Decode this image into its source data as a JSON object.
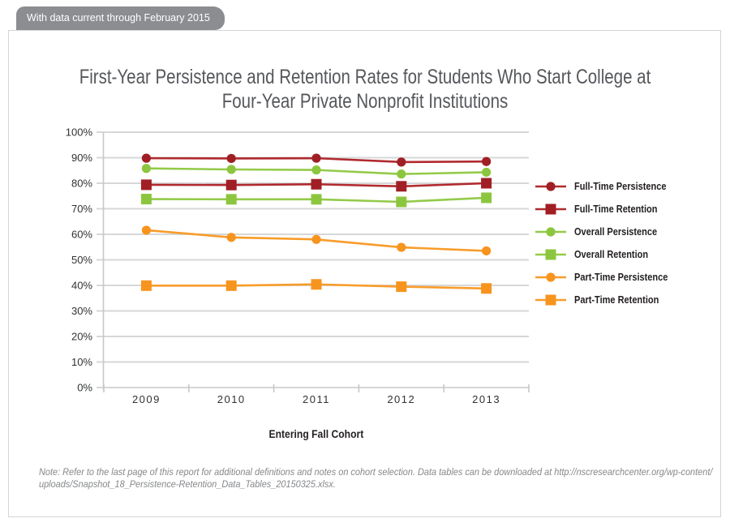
{
  "badge": {
    "text": "With data current through February 2015"
  },
  "title": {
    "line1": "First-Year Persistence and Retention Rates for Students Who Start College at",
    "line2": "Four-Year Private Nonprofit Institutions"
  },
  "chart_data": {
    "type": "line",
    "title": "First-Year Persistence and Retention Rates for Students Who Start College at Four-Year Private Nonprofit Institutions",
    "xlabel": "Entering Fall Cohort",
    "ylabel": "",
    "categories": [
      "2009",
      "2010",
      "2011",
      "2012",
      "2013"
    ],
    "ylim": [
      0,
      100
    ],
    "ytick_step": 10,
    "y_ticks": [
      "100%",
      "90%",
      "80%",
      "70%",
      "60%",
      "50%",
      "40%",
      "30%",
      "20%",
      "10%",
      "0%"
    ],
    "grid": true,
    "legend_position": "right",
    "series": [
      {
        "name": "Full-Time Persistence",
        "marker": "circle",
        "color": "#a01f25",
        "line_color": "#b02a2e",
        "values": [
          89.8,
          89.7,
          89.8,
          88.3,
          88.5
        ]
      },
      {
        "name": "Full-Time Retention",
        "marker": "square",
        "color": "#a01f25",
        "line_color": "#b02a2e",
        "values": [
          79.4,
          79.3,
          79.6,
          78.8,
          80.0
        ]
      },
      {
        "name": "Overall Persistence",
        "marker": "circle",
        "color": "#8cc63e",
        "line_color": "#93ca49",
        "values": [
          85.8,
          85.4,
          85.2,
          83.6,
          84.3
        ]
      },
      {
        "name": "Overall Retention",
        "marker": "square",
        "color": "#8cc63e",
        "line_color": "#93ca49",
        "values": [
          73.8,
          73.7,
          73.7,
          72.7,
          74.3
        ]
      },
      {
        "name": "Part-Time Persistence",
        "marker": "circle",
        "color": "#f7941e",
        "line_color": "#f89c2a",
        "values": [
          61.6,
          58.8,
          58.0,
          54.9,
          53.5
        ]
      },
      {
        "name": "Part-Time Retention",
        "marker": "square",
        "color": "#f7941e",
        "line_color": "#f89c2a",
        "values": [
          39.9,
          39.9,
          40.4,
          39.5,
          38.8
        ]
      }
    ]
  },
  "note": {
    "line1": "Note: Refer to the last page of this report for additional definitions and notes on cohort selection. Data tables can be downloaded at http://nscresearchcenter.org/wp-content/",
    "line2": "uploads/Snapshot_18_Persistence-Retention_Data_Tables_20150325.xlsx."
  },
  "colors": {
    "badge_bg": "#8b8d90",
    "title_text": "#55575b",
    "grid_line": "#d6d7d8",
    "axis_line": "#c7c8ca",
    "tick_text": "#303234",
    "note_text": "#85878a",
    "panel_border": "#d4d5d7"
  }
}
